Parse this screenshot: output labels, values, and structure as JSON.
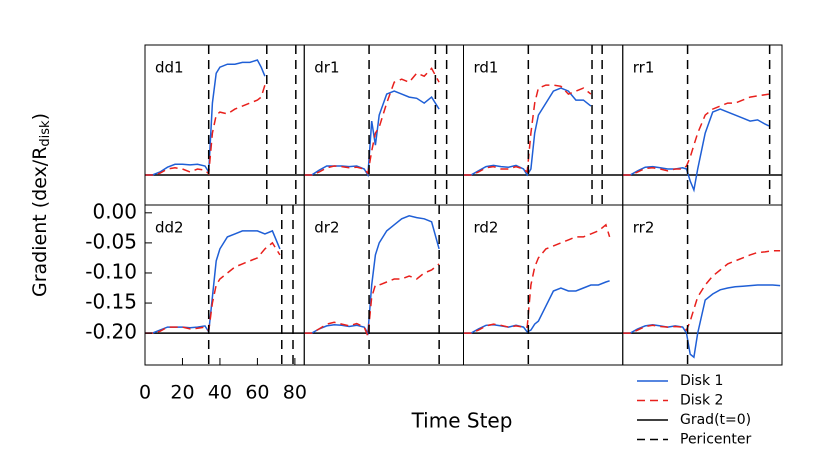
{
  "x_label": "Time Step",
  "y_label": {
    "text": "Gradient (dex/R",
    "subscript": "disk",
    "suffix": ")"
  },
  "legend": [
    {
      "label": "Disk 1",
      "color": "#1f5fd6",
      "style": "solid"
    },
    {
      "label": "Disk 2",
      "color": "#e8201c",
      "style": "dashed"
    },
    {
      "label": "Grad(t=0)",
      "color": "#000000",
      "style": "solid"
    },
    {
      "label": "Pericenter",
      "color": "#000000",
      "style": "dashed"
    }
  ],
  "chart_data": [
    {
      "type": "line",
      "label": "dd1",
      "xlim": [
        0,
        85
      ],
      "ylim": [
        -0.25,
        0.017
      ],
      "baseline": -0.2,
      "pericenters": [
        34,
        65,
        80.5
      ],
      "x": [
        0,
        4,
        8,
        12,
        16,
        20,
        24,
        28,
        32,
        34,
        36,
        38,
        40,
        44,
        48,
        52,
        56,
        60,
        62,
        64
      ],
      "series": [
        {
          "color": "#1f5fd6",
          "values": [
            -0.2,
            -0.2,
            -0.195,
            -0.187,
            -0.182,
            -0.182,
            -0.183,
            -0.182,
            -0.185,
            -0.195,
            -0.08,
            -0.03,
            -0.02,
            -0.015,
            -0.015,
            -0.012,
            -0.012,
            -0.008,
            -0.02,
            -0.035
          ]
        },
        {
          "color": "#e8201c",
          "values": [
            -0.2,
            -0.2,
            -0.197,
            -0.19,
            -0.188,
            -0.19,
            -0.195,
            -0.19,
            -0.192,
            -0.198,
            -0.13,
            -0.1,
            -0.095,
            -0.098,
            -0.09,
            -0.085,
            -0.08,
            -0.075,
            -0.07,
            -0.05
          ]
        }
      ]
    },
    {
      "type": "line",
      "label": "dr1",
      "xlim": [
        0,
        85
      ],
      "ylim": [
        -0.25,
        0.017
      ],
      "baseline": -0.2,
      "pericenters": [
        34.6,
        70,
        76
      ],
      "x": [
        0,
        4,
        8,
        12,
        16,
        20,
        24,
        28,
        32,
        34,
        36,
        38,
        40,
        44,
        48,
        52,
        56,
        60,
        64,
        68,
        72
      ],
      "series": [
        {
          "color": "#1f5fd6",
          "values": [
            -0.2,
            -0.2,
            -0.192,
            -0.185,
            -0.185,
            -0.185,
            -0.186,
            -0.185,
            -0.19,
            -0.2,
            -0.11,
            -0.15,
            -0.1,
            -0.065,
            -0.06,
            -0.065,
            -0.07,
            -0.072,
            -0.08,
            -0.07,
            -0.09
          ]
        },
        {
          "color": "#e8201c",
          "values": [
            -0.2,
            -0.2,
            -0.195,
            -0.188,
            -0.185,
            -0.186,
            -0.188,
            -0.187,
            -0.19,
            -0.197,
            -0.16,
            -0.13,
            -0.12,
            -0.08,
            -0.045,
            -0.04,
            -0.045,
            -0.03,
            -0.035,
            -0.022,
            -0.045
          ]
        }
      ]
    },
    {
      "type": "line",
      "label": "rd1",
      "xlim": [
        0,
        85
      ],
      "ylim": [
        -0.25,
        0.017
      ],
      "baseline": -0.2,
      "pericenters": [
        34.6,
        68.6,
        74
      ],
      "x": [
        0,
        4,
        8,
        12,
        16,
        20,
        24,
        28,
        32,
        34,
        36,
        38,
        40,
        44,
        48,
        52,
        56,
        60,
        64,
        68
      ],
      "series": [
        {
          "color": "#1f5fd6",
          "values": [
            -0.2,
            -0.2,
            -0.193,
            -0.186,
            -0.184,
            -0.186,
            -0.187,
            -0.184,
            -0.19,
            -0.2,
            -0.19,
            -0.13,
            -0.1,
            -0.08,
            -0.06,
            -0.055,
            -0.06,
            -0.075,
            -0.075,
            -0.085
          ]
        },
        {
          "color": "#e8201c",
          "values": [
            -0.2,
            -0.2,
            -0.195,
            -0.188,
            -0.186,
            -0.19,
            -0.19,
            -0.186,
            -0.19,
            -0.195,
            -0.13,
            -0.08,
            -0.055,
            -0.05,
            -0.05,
            -0.052,
            -0.065,
            -0.06,
            -0.055,
            -0.065
          ]
        }
      ]
    },
    {
      "type": "line",
      "label": "rr1",
      "xlim": [
        0,
        85
      ],
      "ylim": [
        -0.25,
        0.017
      ],
      "baseline": -0.2,
      "pericenters": [
        34.6,
        78.4
      ],
      "x": [
        0,
        4,
        8,
        12,
        16,
        20,
        24,
        28,
        32,
        34,
        36,
        38,
        40,
        44,
        48,
        52,
        56,
        60,
        64,
        68,
        72,
        76,
        78
      ],
      "series": [
        {
          "color": "#1f5fd6",
          "values": [
            -0.2,
            -0.2,
            -0.193,
            -0.187,
            -0.186,
            -0.188,
            -0.19,
            -0.19,
            -0.188,
            -0.19,
            -0.21,
            -0.225,
            -0.19,
            -0.13,
            -0.095,
            -0.09,
            -0.095,
            -0.1,
            -0.105,
            -0.11,
            -0.108,
            -0.115,
            -0.118
          ]
        },
        {
          "color": "#e8201c",
          "values": [
            -0.2,
            -0.2,
            -0.195,
            -0.189,
            -0.188,
            -0.19,
            -0.193,
            -0.19,
            -0.19,
            -0.185,
            -0.17,
            -0.15,
            -0.13,
            -0.1,
            -0.09,
            -0.085,
            -0.08,
            -0.08,
            -0.075,
            -0.07,
            -0.068,
            -0.066,
            -0.065
          ]
        }
      ]
    },
    {
      "type": "line",
      "label": "dd2",
      "xlim": [
        0,
        85
      ],
      "ylim": [
        -0.253,
        0.013
      ],
      "baseline": -0.2,
      "pericenters": [
        34,
        73,
        79
      ],
      "xticks": [
        0,
        20,
        40,
        60,
        80
      ],
      "yticks": [
        {
          "value": 0,
          "label": "0.00"
        },
        {
          "value": -0.05,
          "label": "-0.05"
        },
        {
          "value": -0.1,
          "label": "-0.10"
        },
        {
          "value": -0.15,
          "label": "-0.15"
        },
        {
          "value": -0.2,
          "label": "-0.20"
        }
      ],
      "x": [
        0,
        4,
        8,
        12,
        16,
        20,
        24,
        28,
        32,
        34,
        36,
        38,
        40,
        44,
        48,
        52,
        56,
        60,
        64,
        68,
        72
      ],
      "series": [
        {
          "color": "#1f5fd6",
          "values": [
            -0.2,
            -0.2,
            -0.195,
            -0.19,
            -0.19,
            -0.19,
            -0.191,
            -0.19,
            -0.188,
            -0.198,
            -0.14,
            -0.08,
            -0.06,
            -0.04,
            -0.035,
            -0.03,
            -0.03,
            -0.03,
            -0.035,
            -0.03,
            -0.06
          ]
        },
        {
          "color": "#e8201c",
          "values": [
            -0.2,
            -0.2,
            -0.197,
            -0.19,
            -0.19,
            -0.19,
            -0.193,
            -0.192,
            -0.19,
            -0.196,
            -0.15,
            -0.12,
            -0.11,
            -0.1,
            -0.09,
            -0.085,
            -0.08,
            -0.075,
            -0.06,
            -0.05,
            -0.07
          ]
        }
      ]
    },
    {
      "type": "line",
      "label": "dr2",
      "xlim": [
        0,
        85
      ],
      "ylim": [
        -0.253,
        0.013
      ],
      "baseline": -0.2,
      "pericenters": [
        34.6,
        72
      ],
      "x": [
        0,
        4,
        8,
        12,
        16,
        20,
        24,
        28,
        32,
        34,
        36,
        38,
        40,
        44,
        48,
        52,
        56,
        60,
        64,
        68,
        72
      ],
      "series": [
        {
          "color": "#1f5fd6",
          "values": [
            -0.2,
            -0.2,
            -0.193,
            -0.188,
            -0.186,
            -0.187,
            -0.189,
            -0.187,
            -0.19,
            -0.2,
            -0.12,
            -0.07,
            -0.05,
            -0.03,
            -0.02,
            -0.01,
            -0.005,
            -0.008,
            -0.01,
            -0.015,
            -0.06
          ]
        },
        {
          "color": "#e8201c",
          "values": [
            -0.2,
            -0.2,
            -0.193,
            -0.185,
            -0.182,
            -0.185,
            -0.188,
            -0.184,
            -0.19,
            -0.205,
            -0.14,
            -0.12,
            -0.12,
            -0.115,
            -0.11,
            -0.11,
            -0.105,
            -0.11,
            -0.1,
            -0.095,
            -0.085
          ]
        }
      ]
    },
    {
      "type": "line",
      "label": "rd2",
      "xlim": [
        0,
        85
      ],
      "ylim": [
        -0.253,
        0.013
      ],
      "baseline": -0.2,
      "pericenters": [
        34.6
      ],
      "x": [
        0,
        4,
        8,
        12,
        16,
        20,
        24,
        28,
        32,
        34,
        36,
        38,
        40,
        44,
        48,
        52,
        56,
        60,
        64,
        68,
        72,
        76,
        78
      ],
      "series": [
        {
          "color": "#1f5fd6",
          "values": [
            -0.2,
            -0.2,
            -0.193,
            -0.187,
            -0.186,
            -0.188,
            -0.19,
            -0.187,
            -0.19,
            -0.198,
            -0.195,
            -0.185,
            -0.18,
            -0.155,
            -0.13,
            -0.125,
            -0.13,
            -0.13,
            -0.125,
            -0.12,
            -0.12,
            -0.115,
            -0.113
          ]
        },
        {
          "color": "#e8201c",
          "values": [
            -0.2,
            -0.2,
            -0.195,
            -0.188,
            -0.185,
            -0.187,
            -0.19,
            -0.188,
            -0.19,
            -0.19,
            -0.12,
            -0.09,
            -0.075,
            -0.06,
            -0.055,
            -0.05,
            -0.045,
            -0.04,
            -0.04,
            -0.035,
            -0.03,
            -0.02,
            -0.04
          ]
        }
      ]
    },
    {
      "type": "line",
      "label": "rr2",
      "xlim": [
        0,
        85
      ],
      "ylim": [
        -0.253,
        0.013
      ],
      "baseline": -0.2,
      "pericenters": [
        34.6
      ],
      "x": [
        0,
        4,
        8,
        12,
        16,
        20,
        24,
        28,
        32,
        34,
        36,
        38,
        40,
        44,
        48,
        52,
        56,
        60,
        64,
        68,
        72,
        76,
        80,
        84
      ],
      "series": [
        {
          "color": "#1f5fd6",
          "values": [
            -0.2,
            -0.2,
            -0.193,
            -0.188,
            -0.186,
            -0.188,
            -0.19,
            -0.188,
            -0.19,
            -0.2,
            -0.235,
            -0.24,
            -0.2,
            -0.145,
            -0.135,
            -0.128,
            -0.125,
            -0.123,
            -0.122,
            -0.121,
            -0.12,
            -0.12,
            -0.12,
            -0.121
          ]
        },
        {
          "color": "#e8201c",
          "values": [
            -0.2,
            -0.2,
            -0.195,
            -0.189,
            -0.187,
            -0.189,
            -0.19,
            -0.189,
            -0.19,
            -0.195,
            -0.18,
            -0.16,
            -0.14,
            -0.12,
            -0.105,
            -0.095,
            -0.085,
            -0.08,
            -0.075,
            -0.07,
            -0.066,
            -0.065,
            -0.063,
            -0.063
          ]
        }
      ]
    }
  ]
}
